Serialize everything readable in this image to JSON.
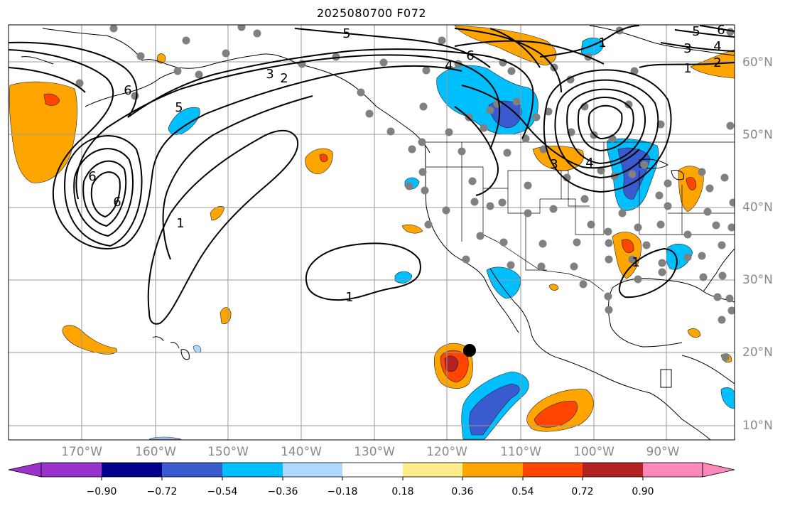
{
  "title": "2025080700 F072",
  "longitude_labels": [
    "170°W",
    "160°W",
    "150°W",
    "140°W",
    "130°W",
    "120°W",
    "110°W",
    "100°W",
    "90°W"
  ],
  "latitude_labels": [
    "60°N",
    "50°N",
    "40°N",
    "30°N",
    "20°N",
    "10°N"
  ],
  "colorbar": {
    "tick_labels": [
      "−0.90",
      "−0.72",
      "−0.54",
      "−0.36",
      "−0.18",
      "0.18",
      "0.36",
      "0.54",
      "0.72",
      "0.90"
    ],
    "colors": [
      "#9933cc",
      "#00008b",
      "#3a5bcf",
      "#00bfff",
      "#add8ff",
      "#ffffff",
      "#ffec8b",
      "#ffa500",
      "#ff4500",
      "#b22222",
      "#ff88bb"
    ]
  },
  "contour_labels": [
    "5",
    "6",
    "4",
    "3",
    "2",
    "6",
    "5",
    "6",
    "6",
    "1",
    "1",
    "1",
    "3",
    "4",
    "1",
    "5",
    "6",
    "4",
    "3",
    "2",
    "1"
  ],
  "fill_colors": {
    "orange": "#ffa500",
    "red_orange": "#ff4500",
    "dark_red": "#b22222",
    "yellow": "#ffec8b",
    "light_blue": "#add8ff",
    "cyan": "#00bfff",
    "blue": "#3a5bcf"
  }
}
